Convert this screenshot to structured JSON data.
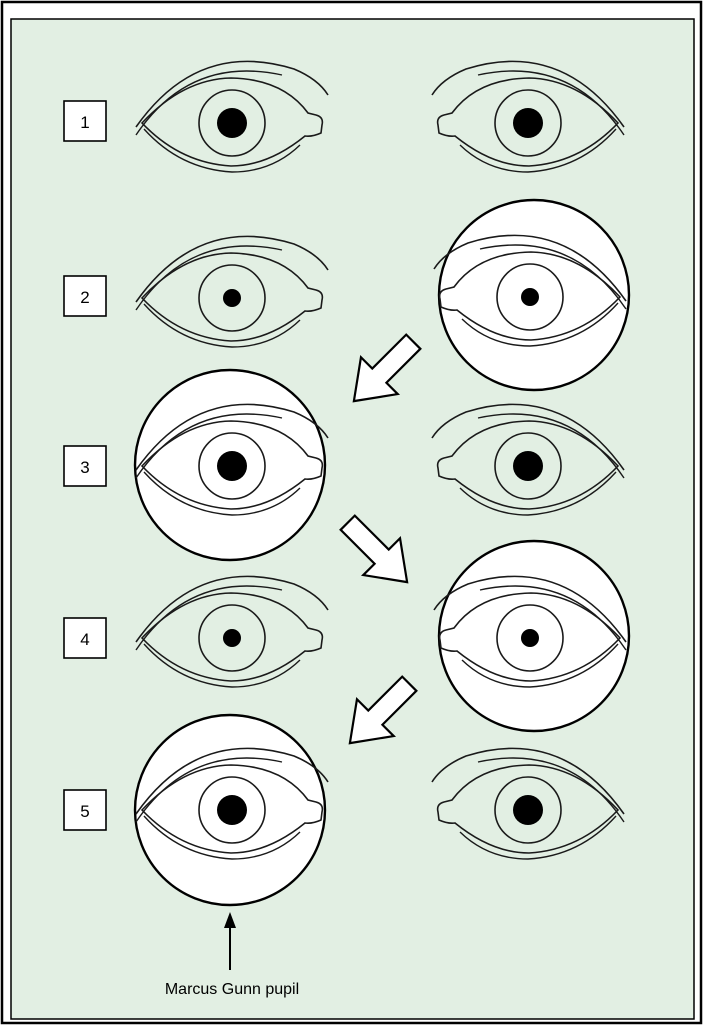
{
  "colors": {
    "panel_fill": "#e2efe3",
    "frame": "#000000",
    "stroke": "#1a1a1a",
    "magnifier_fill": "#ffffff"
  },
  "steps": [
    {
      "label": "1",
      "left_eye": {
        "pupil": "dilated",
        "magnified": false
      },
      "right_eye": {
        "pupil": "dilated",
        "magnified": false
      }
    },
    {
      "label": "2",
      "left_eye": {
        "pupil": "constricted",
        "magnified": false
      },
      "right_eye": {
        "pupil": "constricted",
        "magnified": true
      }
    },
    {
      "label": "3",
      "left_eye": {
        "pupil": "dilated",
        "magnified": true
      },
      "right_eye": {
        "pupil": "dilated",
        "magnified": false
      }
    },
    {
      "label": "4",
      "left_eye": {
        "pupil": "constricted",
        "magnified": false
      },
      "right_eye": {
        "pupil": "constricted",
        "magnified": true
      }
    },
    {
      "label": "5",
      "left_eye": {
        "pupil": "dilated",
        "magnified": true
      },
      "right_eye": {
        "pupil": "dilated",
        "magnified": false
      }
    }
  ],
  "annotation": {
    "caption": "Marcus Gunn pupil"
  }
}
